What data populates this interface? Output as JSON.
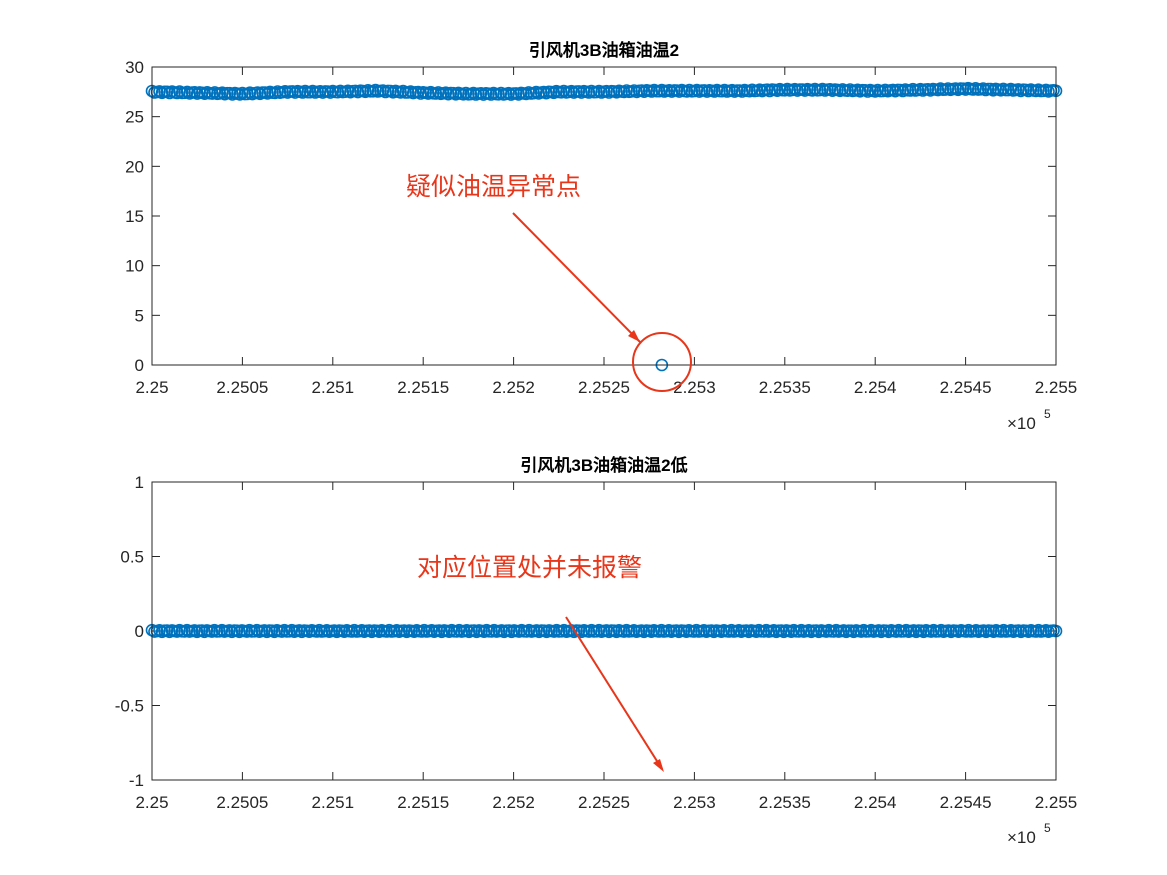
{
  "chart_data": [
    {
      "type": "scatter",
      "title": "引风机3B油箱油温2",
      "xlabel": "",
      "ylabel": "",
      "xlim": [
        225000,
        225500
      ],
      "ylim": [
        0,
        30
      ],
      "xticks": [
        225000,
        225050,
        225100,
        225150,
        225200,
        225250,
        225300,
        225350,
        225400,
        225450,
        225500
      ],
      "xtick_labels": [
        "2.25",
        "2.2505",
        "2.251",
        "2.2515",
        "2.252",
        "2.2525",
        "2.253",
        "2.2535",
        "2.254",
        "2.2545",
        "2.255"
      ],
      "yticks": [
        0,
        5,
        10,
        15,
        20,
        25,
        30
      ],
      "ytick_labels": [
        "0",
        "5",
        "10",
        "15",
        "20",
        "25",
        "30"
      ],
      "x_exponent_base": "×10",
      "x_exponent_power": "5",
      "series": [
        {
          "marker": "circle",
          "color": "#0072BD",
          "x": [
            225000,
            225025,
            225050,
            225075,
            225100,
            225125,
            225150,
            225175,
            225200,
            225225,
            225250,
            225275,
            225300,
            225325,
            225350,
            225375,
            225400,
            225425,
            225450,
            225475,
            225500
          ],
          "y": [
            27.5,
            27.4,
            27.3,
            27.5,
            27.5,
            27.6,
            27.4,
            27.3,
            27.3,
            27.5,
            27.5,
            27.6,
            27.6,
            27.6,
            27.7,
            27.7,
            27.6,
            27.7,
            27.8,
            27.7,
            27.6
          ]
        },
        {
          "marker": "circle",
          "color": "#0072BD",
          "x": [
            225282
          ],
          "y": [
            0
          ]
        }
      ],
      "annotation": {
        "text": "疑似油温异常点",
        "points_to": {
          "x": 225282,
          "y": 0
        },
        "color": "#e8361a"
      }
    },
    {
      "type": "scatter",
      "title": "引风机3B油箱油温2低",
      "xlabel": "",
      "ylabel": "",
      "xlim": [
        225000,
        225500
      ],
      "ylim": [
        -1,
        1
      ],
      "xticks": [
        225000,
        225050,
        225100,
        225150,
        225200,
        225250,
        225300,
        225350,
        225400,
        225450,
        225500
      ],
      "xtick_labels": [
        "2.25",
        "2.2505",
        "2.251",
        "2.2515",
        "2.252",
        "2.2525",
        "2.253",
        "2.2535",
        "2.254",
        "2.2545",
        "2.255"
      ],
      "yticks": [
        -1,
        -0.5,
        0,
        0.5,
        1
      ],
      "ytick_labels": [
        "-1",
        "-0.5",
        "0",
        "0.5",
        "1"
      ],
      "x_exponent_base": "×10",
      "x_exponent_power": "5",
      "series": [
        {
          "marker": "circle",
          "color": "#0072BD",
          "x": [
            225000,
            225500
          ],
          "y": [
            0,
            0
          ]
        }
      ],
      "annotation": {
        "text": "对应位置处并未报警",
        "points_to": {
          "x": 225282,
          "y": -0.95
        },
        "color": "#e8361a"
      }
    }
  ]
}
